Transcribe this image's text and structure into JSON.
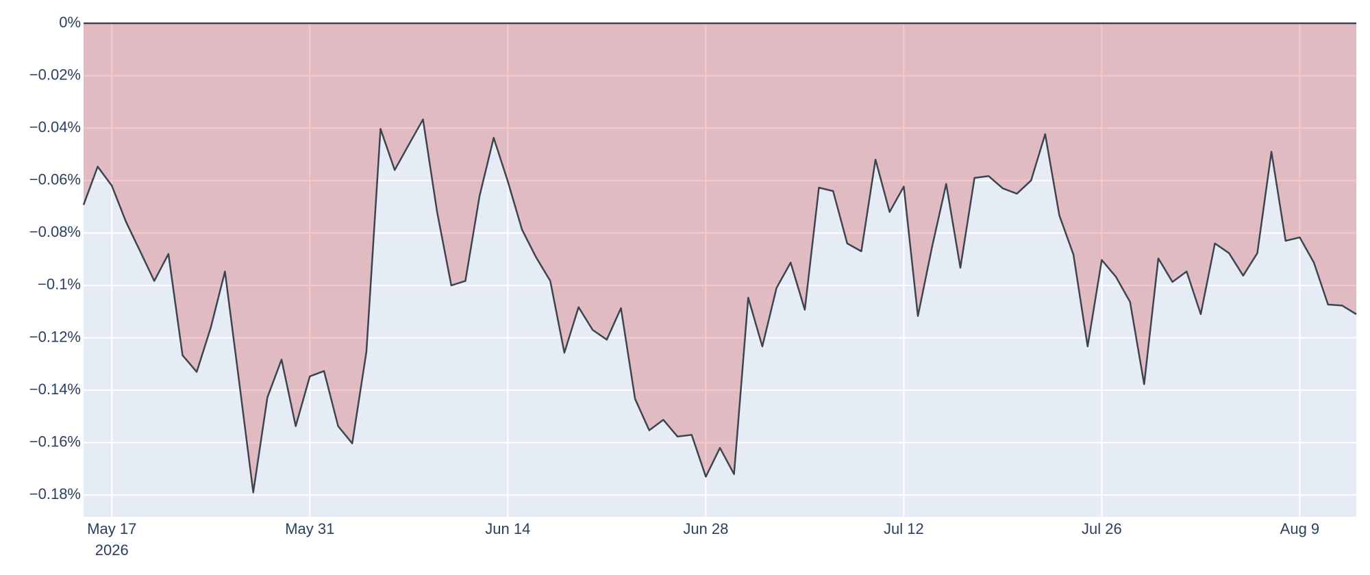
{
  "chart_data": {
    "type": "area",
    "x": [
      "2026-05-15",
      "2026-05-16",
      "2026-05-17",
      "2026-05-18",
      "2026-05-19",
      "2026-05-20",
      "2026-05-21",
      "2026-05-22",
      "2026-05-23",
      "2026-05-24",
      "2026-05-25",
      "2026-05-26",
      "2026-05-27",
      "2026-05-28",
      "2026-05-29",
      "2026-05-30",
      "2026-05-31",
      "2026-06-01",
      "2026-06-02",
      "2026-06-03",
      "2026-06-04",
      "2026-06-05",
      "2026-06-06",
      "2026-06-07",
      "2026-06-08",
      "2026-06-09",
      "2026-06-10",
      "2026-06-11",
      "2026-06-12",
      "2026-06-13",
      "2026-06-14",
      "2026-06-15",
      "2026-06-16",
      "2026-06-17",
      "2026-06-18",
      "2026-06-19",
      "2026-06-20",
      "2026-06-21",
      "2026-06-22",
      "2026-06-23",
      "2026-06-24",
      "2026-06-25",
      "2026-06-26",
      "2026-06-27",
      "2026-06-28",
      "2026-06-29",
      "2026-06-30",
      "2026-07-01",
      "2026-07-02",
      "2026-07-03",
      "2026-07-04",
      "2026-07-05",
      "2026-07-06",
      "2026-07-07",
      "2026-07-08",
      "2026-07-09",
      "2026-07-10",
      "2026-07-11",
      "2026-07-12",
      "2026-07-13",
      "2026-07-14",
      "2026-07-15",
      "2026-07-16",
      "2026-07-17",
      "2026-07-18",
      "2026-07-19",
      "2026-07-20",
      "2026-07-21",
      "2026-07-22",
      "2026-07-23",
      "2026-07-24",
      "2026-07-25",
      "2026-07-26",
      "2026-07-27",
      "2026-07-28",
      "2026-07-29",
      "2026-07-30",
      "2026-07-31",
      "2026-08-01",
      "2026-08-02",
      "2026-08-03",
      "2026-08-04",
      "2026-08-05",
      "2026-08-06",
      "2026-08-07",
      "2026-08-08",
      "2026-08-09",
      "2026-08-10",
      "2026-08-11",
      "2026-08-12",
      "2026-08-13"
    ],
    "values": [
      -0.0693,
      -0.0547,
      -0.062,
      -0.0757,
      -0.087,
      -0.0983,
      -0.088,
      -0.1267,
      -0.133,
      -0.116,
      -0.0947,
      -0.1367,
      -0.179,
      -0.1427,
      -0.1283,
      -0.1537,
      -0.1347,
      -0.1327,
      -0.1537,
      -0.1603,
      -0.1253,
      -0.0403,
      -0.056,
      -0.0463,
      -0.0367,
      -0.072,
      -0.1,
      -0.0983,
      -0.066,
      -0.0437,
      -0.0603,
      -0.0787,
      -0.0893,
      -0.0983,
      -0.1257,
      -0.1083,
      -0.117,
      -0.1207,
      -0.1087,
      -0.1433,
      -0.1553,
      -0.1513,
      -0.1577,
      -0.157,
      -0.173,
      -0.162,
      -0.172,
      -0.1047,
      -0.1233,
      -0.101,
      -0.0913,
      -0.1093,
      -0.0627,
      -0.064,
      -0.084,
      -0.087,
      -0.052,
      -0.072,
      -0.0623,
      -0.1117,
      -0.0853,
      -0.0613,
      -0.0933,
      -0.059,
      -0.0583,
      -0.063,
      -0.065,
      -0.06,
      -0.0423,
      -0.0733,
      -0.0883,
      -0.1233,
      -0.0903,
      -0.0967,
      -0.1063,
      -0.1377,
      -0.0897,
      -0.0987,
      -0.0947,
      -0.111,
      -0.084,
      -0.0877,
      -0.0963,
      -0.0877,
      -0.049,
      -0.083,
      -0.0817,
      -0.0913,
      -0.1073,
      -0.1077,
      -0.111
    ],
    "color": "#3d4450",
    "fill_color": "rgba(214,39,40,0.25)",
    "plot_bgcolor": "#e5ecf6",
    "grid": true,
    "xlim": [
      "2026-05-15",
      "2026-08-13"
    ],
    "xticks": [
      {
        "value": "2026-05-17",
        "label": "May 17"
      },
      {
        "value": "2026-05-31",
        "label": "May 31"
      },
      {
        "value": "2026-06-14",
        "label": "Jun 14"
      },
      {
        "value": "2026-06-28",
        "label": "Jun 28"
      },
      {
        "value": "2026-07-12",
        "label": "Jul 12"
      },
      {
        "value": "2026-07-26",
        "label": "Jul 26"
      },
      {
        "value": "2026-08-09",
        "label": "Aug 9"
      }
    ],
    "x_year": "2026",
    "ylim": [
      -0.1883,
      0
    ],
    "yticks": [
      {
        "value": 0,
        "label": "0%"
      },
      {
        "value": -0.02,
        "label": "−0.02%"
      },
      {
        "value": -0.04,
        "label": "−0.04%"
      },
      {
        "value": -0.06,
        "label": "−0.06%"
      },
      {
        "value": -0.08,
        "label": "−0.08%"
      },
      {
        "value": -0.1,
        "label": "−0.1%"
      },
      {
        "value": -0.12,
        "label": "−0.12%"
      },
      {
        "value": -0.14,
        "label": "−0.14%"
      },
      {
        "value": -0.16,
        "label": "−0.16%"
      },
      {
        "value": -0.18,
        "label": "−0.18%"
      }
    ]
  }
}
